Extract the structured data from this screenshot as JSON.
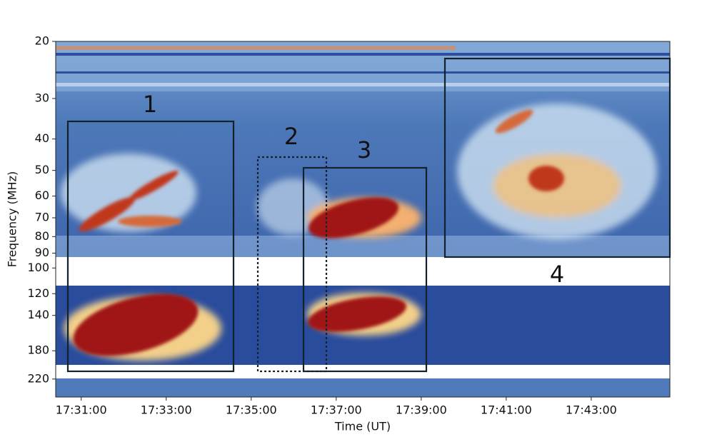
{
  "chart_data": {
    "type": "spectrogram",
    "xlabel": "Time (UT)",
    "ylabel": "Frequency (MHz)",
    "xlim": [
      "17:30:24",
      "17:44:51"
    ],
    "xticks": [
      "17:31:00",
      "17:33:00",
      "17:35:00",
      "17:37:00",
      "17:39:00",
      "17:41:00",
      "17:43:00"
    ],
    "ylim": [
      20,
      250
    ],
    "log_y": true,
    "y_inverted": true,
    "yticks": [
      20,
      30,
      40,
      50,
      60,
      70,
      80,
      90,
      100,
      120,
      140,
      180,
      220
    ],
    "annotations": [
      "1",
      "2",
      "3",
      "4"
    ]
  }
}
